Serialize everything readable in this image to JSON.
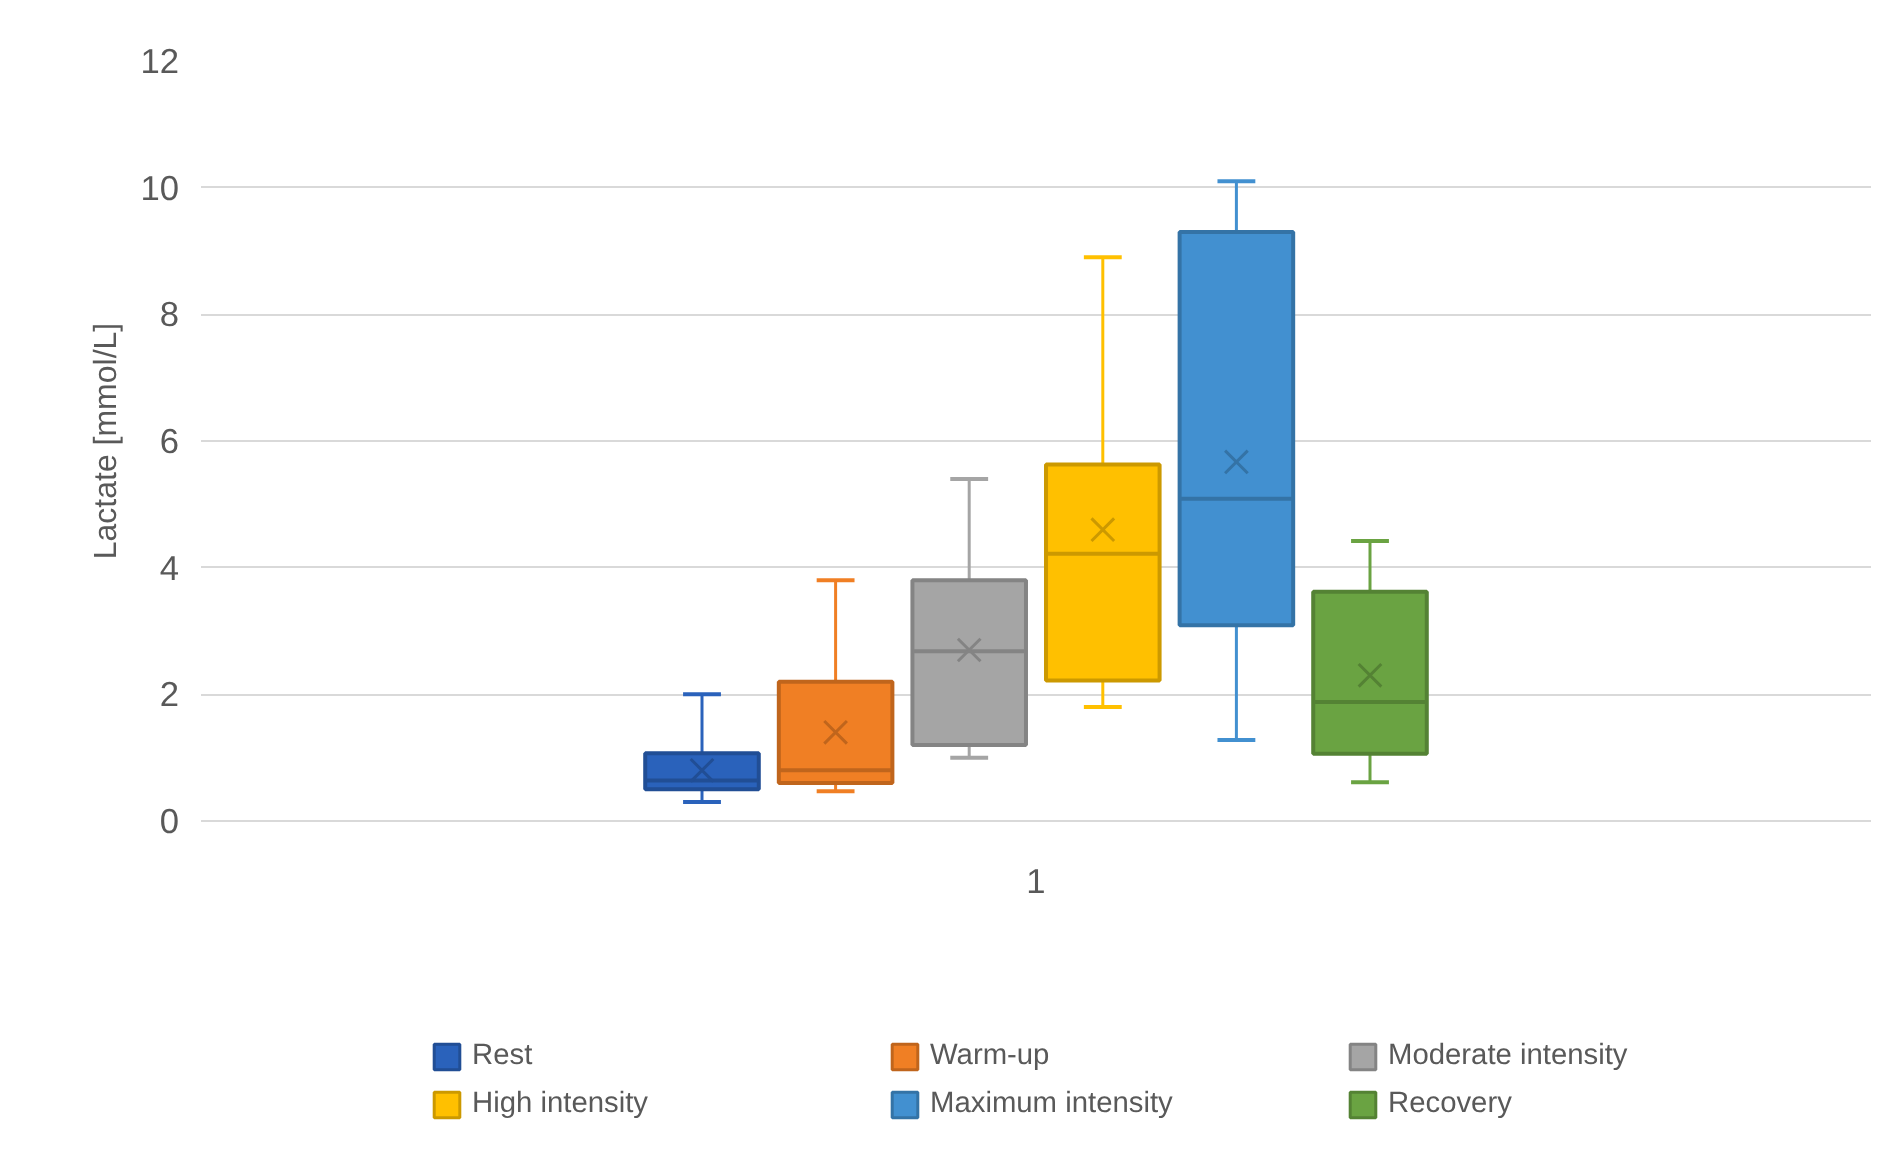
{
  "chart_data": {
    "type": "box",
    "ylabel": "Lactate [mmol/L]",
    "categories": [
      "1"
    ],
    "ylim": [
      0,
      12
    ],
    "yticks": [
      0,
      2,
      4,
      6,
      8,
      10,
      12
    ],
    "grid": "y",
    "legend": "bottom",
    "series": [
      {
        "name": "Rest",
        "color": "#2a62bb",
        "boxes": [
          {
            "low": 0.3,
            "q1": 0.5,
            "median": 0.64,
            "q3": 1.07,
            "high": 2.0,
            "mean": 0.8
          }
        ]
      },
      {
        "name": "Warm-up",
        "color": "#f07f24",
        "boxes": [
          {
            "low": 0.47,
            "q1": 0.6,
            "median": 0.8,
            "q3": 2.2,
            "high": 3.8,
            "mean": 1.4
          }
        ]
      },
      {
        "name": "Moderate intensity",
        "color": "#a5a5a5",
        "boxes": [
          {
            "low": 1.0,
            "q1": 1.2,
            "median": 2.68,
            "q3": 3.8,
            "high": 5.4,
            "mean": 2.7
          }
        ]
      },
      {
        "name": "High intensity",
        "color": "#ffc000",
        "boxes": [
          {
            "low": 1.8,
            "q1": 2.22,
            "median": 4.22,
            "q3": 5.63,
            "high": 8.9,
            "mean": 4.6
          }
        ]
      },
      {
        "name": "Maximum intensity",
        "color": "#4290d0",
        "boxes": [
          {
            "low": 1.28,
            "q1": 3.09,
            "median": 5.09,
            "q3": 9.3,
            "high": 10.1,
            "mean": 5.67
          }
        ]
      },
      {
        "name": "Recovery",
        "color": "#6aa342",
        "boxes": [
          {
            "low": 0.61,
            "q1": 1.06,
            "median": 1.88,
            "q3": 3.62,
            "high": 4.42,
            "mean": 2.3
          }
        ]
      }
    ]
  }
}
